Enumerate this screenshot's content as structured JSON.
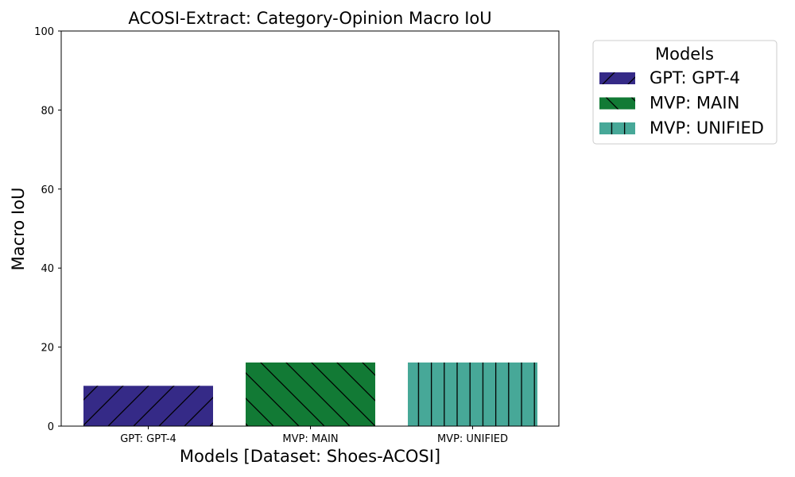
{
  "chart_data": {
    "type": "bar",
    "title": "ACOSI-Extract: Category-Opinion Macro IoU",
    "xlabel": "Models [Dataset: Shoes-ACOSI]",
    "ylabel": "Macro IoU",
    "ylim": [
      0,
      100
    ],
    "yticks": [
      "0",
      "20",
      "40",
      "60",
      "80",
      "100"
    ],
    "categories": [
      "GPT: GPT-4",
      "MVP: MAIN",
      "MVP: UNIFIED"
    ],
    "values": [
      10.2,
      16.1,
      16.1
    ],
    "colors": [
      "#352a87",
      "#127a35",
      "#47a898"
    ],
    "hatches": [
      "forward-diagonal",
      "back-diagonal",
      "vertical"
    ],
    "grid": false,
    "legend": {
      "title": "Models",
      "placement": "outside-top-right",
      "entries": [
        "GPT: GPT-4",
        "MVP: MAIN",
        "MVP: UNIFIED"
      ]
    }
  }
}
